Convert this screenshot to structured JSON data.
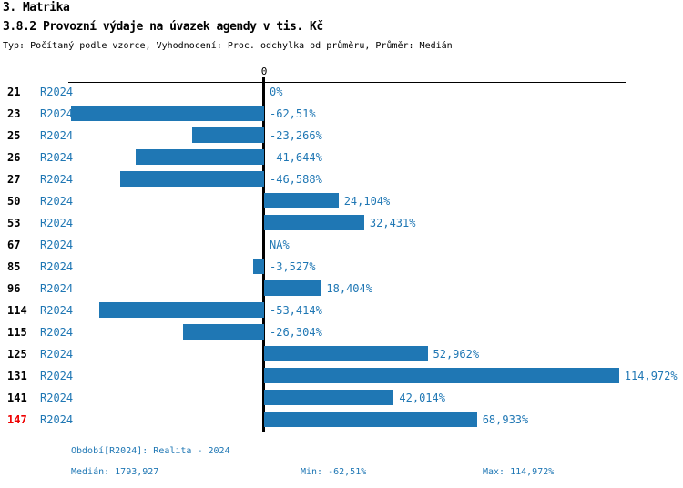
{
  "header": {
    "section_title": "3. Matrika",
    "chart_title": "3.8.2 Provozní výdaje na úvazek agendy v tis. Kč",
    "subtitle": "Typ: Počítaný podle vzorce, Vyhodnocení: Proc. odchylka od průměru, Průměr: Medián"
  },
  "chart_data": {
    "type": "bar",
    "orientation": "horizontal",
    "title": "3.8.2 Provozní výdaje na úvazek agendy v tis. Kč",
    "xlabel": "",
    "ylabel": "",
    "unit": "%",
    "axis": {
      "zero_tick_label": "0",
      "xlim": [
        -64,
        118
      ],
      "grid": false
    },
    "rows": [
      {
        "id": "21",
        "period": "R2024",
        "value": 0,
        "label": "0%",
        "highlight": false
      },
      {
        "id": "23",
        "period": "R2024",
        "value": -62.51,
        "label": "-62,51%",
        "highlight": false
      },
      {
        "id": "25",
        "period": "R2024",
        "value": -23.266,
        "label": "-23,266%",
        "highlight": false
      },
      {
        "id": "26",
        "period": "R2024",
        "value": -41.644,
        "label": "-41,644%",
        "highlight": false
      },
      {
        "id": "27",
        "period": "R2024",
        "value": -46.588,
        "label": "-46,588%",
        "highlight": false
      },
      {
        "id": "50",
        "period": "R2024",
        "value": 24.104,
        "label": "24,104%",
        "highlight": false
      },
      {
        "id": "53",
        "period": "R2024",
        "value": 32.431,
        "label": "32,431%",
        "highlight": false
      },
      {
        "id": "67",
        "period": "R2024",
        "value": null,
        "label": "NA%",
        "highlight": false
      },
      {
        "id": "85",
        "period": "R2024",
        "value": -3.527,
        "label": "-3,527%",
        "highlight": false
      },
      {
        "id": "96",
        "period": "R2024",
        "value": 18.404,
        "label": "18,404%",
        "highlight": false
      },
      {
        "id": "114",
        "period": "R2024",
        "value": -53.414,
        "label": "-53,414%",
        "highlight": false
      },
      {
        "id": "115",
        "period": "R2024",
        "value": -26.304,
        "label": "-26,304%",
        "highlight": false
      },
      {
        "id": "125",
        "period": "R2024",
        "value": 52.962,
        "label": "52,962%",
        "highlight": false
      },
      {
        "id": "131",
        "period": "R2024",
        "value": 114.972,
        "label": "114,972%",
        "highlight": false
      },
      {
        "id": "141",
        "period": "R2024",
        "value": 42.014,
        "label": "42,014%",
        "highlight": false
      },
      {
        "id": "147",
        "period": "R2024",
        "value": 68.933,
        "label": "68,933%",
        "highlight": true
      }
    ]
  },
  "footer": {
    "period_line": "Období[R2024]: Realita - 2024",
    "median_label": "Medián: 1793,927",
    "min_label": "Min: -62,51%",
    "max_label": "Max: 114,972%"
  },
  "colors": {
    "bar": "#1F77B4",
    "text_blue": "#1F77B4",
    "highlight_red": "#EE0000",
    "axis_black": "#000000"
  }
}
